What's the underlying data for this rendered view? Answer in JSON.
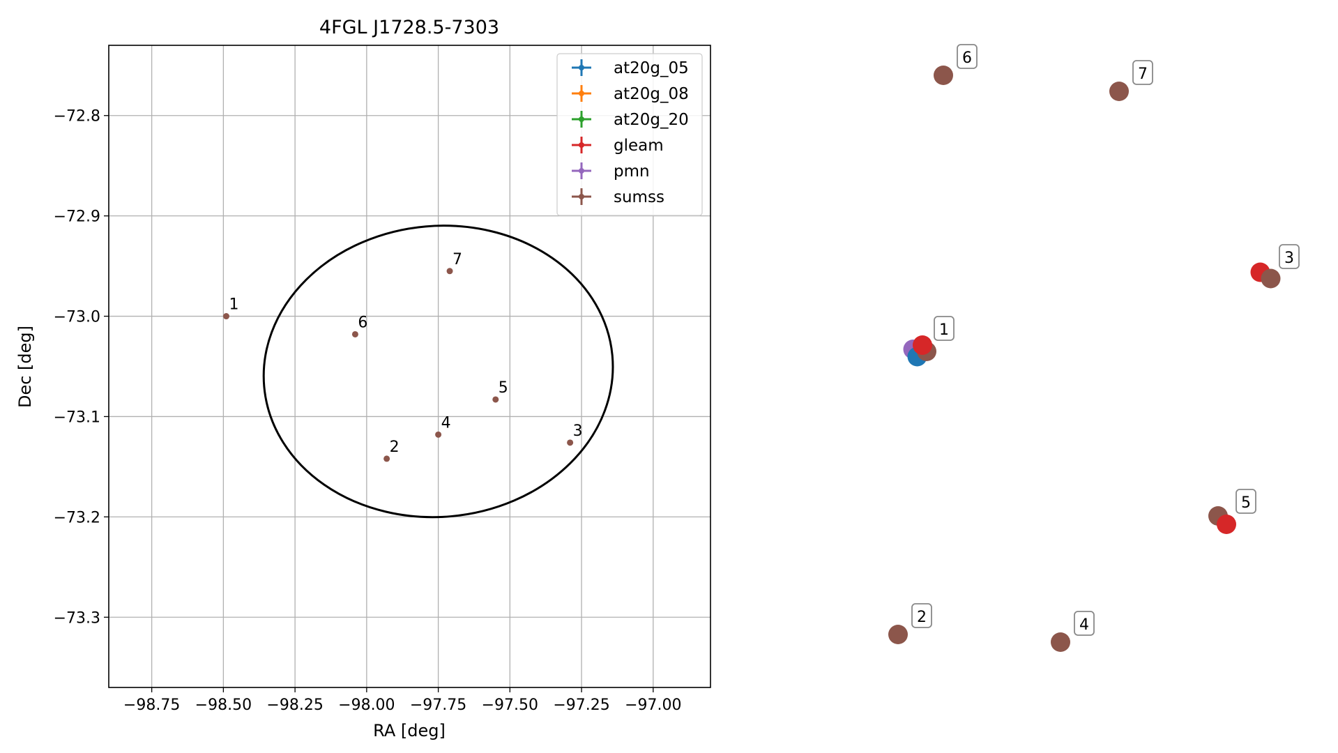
{
  "chart_data": [
    {
      "type": "scatter",
      "title": "4FGL J1728.5-7303",
      "xlabel": "RA [deg]",
      "ylabel": "Dec [deg]",
      "xlim": [
        -98.9,
        -96.8
      ],
      "ylim": [
        -73.37,
        -72.73
      ],
      "xticks": [
        -98.75,
        -98.5,
        -98.25,
        -98.0,
        -97.75,
        -97.5,
        -97.25,
        -97.0
      ],
      "xtick_labels": [
        "−98.75",
        "−98.50",
        "−98.25",
        "−98.00",
        "−97.75",
        "−97.50",
        "−97.25",
        "−97.00"
      ],
      "yticks": [
        -72.8,
        -72.9,
        -73.0,
        -73.1,
        -73.2,
        -73.3
      ],
      "ytick_labels": [
        "−72.8",
        "−72.9",
        "−73.0",
        "−73.1",
        "−73.2",
        "−73.3"
      ],
      "grid": true,
      "legend_position": "top-right",
      "ellipse": {
        "center_ra": -97.75,
        "center_dec": -73.055,
        "ra_radius": 0.61,
        "dec_radius": 0.145,
        "rotation_deg": -5
      },
      "series": [
        {
          "name": "at20g_05",
          "color": "#1f77b4",
          "points": []
        },
        {
          "name": "at20g_08",
          "color": "#ff7f0e",
          "points": []
        },
        {
          "name": "at20g_20",
          "color": "#2ca02c",
          "points": []
        },
        {
          "name": "gleam",
          "color": "#d62728",
          "points": []
        },
        {
          "name": "pmn",
          "color": "#9467bd",
          "points": []
        },
        {
          "name": "sumss",
          "color": "#8c564b",
          "points": [
            {
              "label": "1",
              "ra": -98.49,
              "dec": -73.0
            },
            {
              "label": "2",
              "ra": -97.93,
              "dec": -73.142
            },
            {
              "label": "3",
              "ra": -97.29,
              "dec": -73.126
            },
            {
              "label": "4",
              "ra": -97.75,
              "dec": -73.118
            },
            {
              "label": "5",
              "ra": -97.55,
              "dec": -73.083
            },
            {
              "label": "6",
              "ra": -98.04,
              "dec": -73.018
            },
            {
              "label": "7",
              "ra": -97.71,
              "dec": -72.955
            }
          ]
        }
      ]
    },
    {
      "type": "scatter",
      "description_free": true,
      "groups": [
        {
          "label": "6",
          "markers": [
            {
              "series": "sumss",
              "color": "#8c564b",
              "u": 0.0,
              "v": 0.0
            }
          ]
        },
        {
          "label": "7",
          "markers": [
            {
              "series": "sumss",
              "color": "#8c564b",
              "u": 0.0,
              "v": 0.0
            }
          ]
        },
        {
          "label": "3",
          "markers": [
            {
              "series": "gleam",
              "color": "#d62728",
              "u": -0.5,
              "v": -0.3
            },
            {
              "series": "sumss",
              "color": "#8c564b",
              "u": 0.5,
              "v": 0.3
            }
          ]
        },
        {
          "label": "1",
          "markers": [
            {
              "series": "pmn",
              "color": "#9467bd",
              "u": -0.7,
              "v": 0.2
            },
            {
              "series": "at20g_05",
              "color": "#1f77b4",
              "u": -0.3,
              "v": 0.9
            },
            {
              "series": "sumss",
              "color": "#8c564b",
              "u": 0.6,
              "v": 0.4
            },
            {
              "series": "gleam",
              "color": "#d62728",
              "u": 0.2,
              "v": -0.2
            }
          ]
        },
        {
          "label": "5",
          "markers": [
            {
              "series": "sumss",
              "color": "#8c564b",
              "u": -0.4,
              "v": -0.4
            },
            {
              "series": "gleam",
              "color": "#d62728",
              "u": 0.4,
              "v": 0.4
            }
          ]
        },
        {
          "label": "2",
          "markers": [
            {
              "series": "sumss",
              "color": "#8c564b",
              "u": 0.0,
              "v": 0.0
            }
          ]
        },
        {
          "label": "4",
          "markers": [
            {
              "series": "sumss",
              "color": "#8c564b",
              "u": 0.0,
              "v": 0.0
            }
          ]
        }
      ]
    }
  ]
}
